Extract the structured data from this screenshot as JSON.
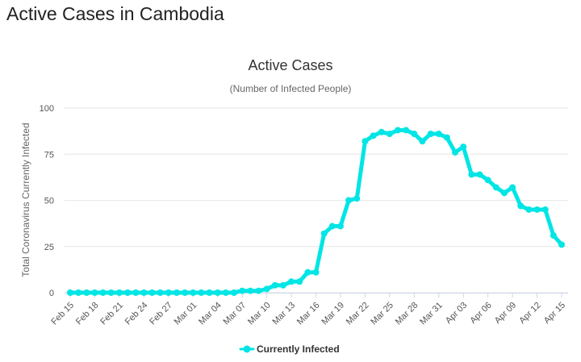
{
  "page": {
    "title": "Active Cases in Cambodia"
  },
  "chart_data": {
    "type": "line",
    "title": "Active Cases",
    "subtitle": "(Number of Infected People)",
    "xlabel": "",
    "ylabel": "Total Coronavirus Currently Infected",
    "ylim": [
      0,
      100
    ],
    "yticks": [
      0,
      25,
      50,
      75,
      100
    ],
    "grid": true,
    "legend_position": "bottom-center",
    "line_color": "#00e5e5",
    "x": [
      "Feb 15",
      "Feb 16",
      "Feb 17",
      "Feb 18",
      "Feb 19",
      "Feb 20",
      "Feb 21",
      "Feb 22",
      "Feb 23",
      "Feb 24",
      "Feb 25",
      "Feb 26",
      "Feb 27",
      "Feb 28",
      "Feb 29",
      "Mar 01",
      "Mar 02",
      "Mar 03",
      "Mar 04",
      "Mar 05",
      "Mar 06",
      "Mar 07",
      "Mar 08",
      "Mar 09",
      "Mar 10",
      "Mar 11",
      "Mar 12",
      "Mar 13",
      "Mar 14",
      "Mar 15",
      "Mar 16",
      "Mar 17",
      "Mar 18",
      "Mar 19",
      "Mar 20",
      "Mar 21",
      "Mar 22",
      "Mar 23",
      "Mar 24",
      "Mar 25",
      "Mar 26",
      "Mar 27",
      "Mar 28",
      "Mar 29",
      "Mar 30",
      "Mar 31",
      "Apr 01",
      "Apr 02",
      "Apr 03",
      "Apr 04",
      "Apr 05",
      "Apr 06",
      "Apr 07",
      "Apr 08",
      "Apr 09",
      "Apr 10",
      "Apr 11",
      "Apr 12",
      "Apr 13",
      "Apr 14",
      "Apr 15"
    ],
    "xtick_labels": [
      "Feb 15",
      "Feb 18",
      "Feb 21",
      "Feb 24",
      "Feb 27",
      "Mar 01",
      "Mar 04",
      "Mar 07",
      "Mar 10",
      "Mar 13",
      "Mar 16",
      "Mar 19",
      "Mar 22",
      "Mar 25",
      "Mar 28",
      "Mar 31",
      "Apr 03",
      "Apr 06",
      "Apr 09",
      "Apr 12",
      "Apr 15"
    ],
    "series": [
      {
        "name": "Currently Infected",
        "values": [
          0,
          0,
          0,
          0,
          0,
          0,
          0,
          0,
          0,
          0,
          0,
          0,
          0,
          0,
          0,
          0,
          0,
          0,
          0,
          0,
          0,
          1,
          1,
          1,
          2,
          4,
          4,
          6,
          6,
          11,
          11,
          32,
          36,
          36,
          50,
          51,
          82,
          85,
          87,
          86,
          88,
          88,
          86,
          82,
          86,
          86,
          84,
          76,
          79,
          64,
          64,
          61,
          57,
          54,
          57,
          47,
          45,
          45,
          45,
          31,
          26
        ]
      }
    ]
  }
}
